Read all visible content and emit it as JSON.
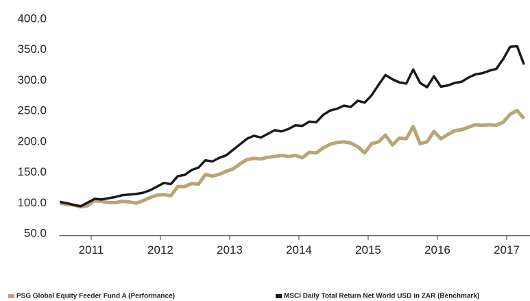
{
  "chart_data": {
    "type": "line",
    "x": [
      2010.55,
      2010.65,
      2010.75,
      2010.85,
      2010.95,
      2011.05,
      2011.15,
      2011.25,
      2011.35,
      2011.45,
      2011.55,
      2011.65,
      2011.75,
      2011.85,
      2011.95,
      2012.05,
      2012.15,
      2012.25,
      2012.35,
      2012.45,
      2012.55,
      2012.65,
      2012.75,
      2012.85,
      2012.95,
      2013.05,
      2013.15,
      2013.25,
      2013.35,
      2013.45,
      2013.55,
      2013.65,
      2013.75,
      2013.85,
      2013.95,
      2014.05,
      2014.15,
      2014.25,
      2014.35,
      2014.45,
      2014.55,
      2014.65,
      2014.75,
      2014.85,
      2014.95,
      2015.05,
      2015.15,
      2015.25,
      2015.35,
      2015.45,
      2015.55,
      2015.65,
      2015.75,
      2015.85,
      2015.95,
      2016.05,
      2016.15,
      2016.25,
      2016.35,
      2016.45,
      2016.55,
      2016.65,
      2016.75,
      2016.85,
      2016.95,
      2017.05,
      2017.15,
      2017.25
    ],
    "series": [
      {
        "name": "PSG Global Equity Feeder Fund A (Performance)",
        "color": "#b9a476",
        "values": [
          100,
          98,
          97,
          94,
          96,
          104,
          103,
          101,
          101,
          103,
          102,
          100,
          104,
          109,
          113,
          114,
          112,
          127,
          127,
          132,
          131,
          147,
          144,
          147,
          152,
          156,
          164,
          171,
          173,
          172,
          175,
          176,
          178,
          176,
          178,
          174,
          183,
          182,
          190,
          196,
          199,
          200,
          198,
          192,
          182,
          197,
          200,
          211,
          195,
          206,
          205,
          225,
          197,
          200,
          217,
          205,
          212,
          218,
          220,
          224,
          228,
          227,
          228,
          227,
          232,
          245,
          251,
          238
        ]
      },
      {
        "name": "MSCI Daily Total Return Net World USD in ZAR (Benchmark)",
        "color": "#1a1a1a",
        "values": [
          102,
          100,
          97,
          95,
          101,
          107,
          106,
          108,
          110,
          113,
          114,
          115,
          117,
          121,
          127,
          133,
          131,
          144,
          146,
          154,
          158,
          170,
          168,
          174,
          178,
          187,
          196,
          205,
          210,
          207,
          213,
          219,
          217,
          221,
          227,
          226,
          233,
          232,
          244,
          251,
          254,
          259,
          257,
          267,
          264,
          276,
          293,
          309,
          302,
          297,
          295,
          318,
          296,
          289,
          307,
          290,
          292,
          296,
          298,
          305,
          310,
          312,
          316,
          319,
          335,
          355,
          356,
          326
        ]
      }
    ],
    "xlim": [
      2010.55,
      2017.3
    ],
    "xticks": [
      2011,
      2012,
      2013,
      2014,
      2015,
      2016,
      2017
    ],
    "ylim": [
      47,
      400
    ],
    "yticks": [
      {
        "value": 50,
        "label": "50.0"
      },
      {
        "value": 100,
        "label": "100.0"
      },
      {
        "value": 150,
        "label": "150.0"
      },
      {
        "value": 200,
        "label": "200.0"
      },
      {
        "value": 250,
        "label": "250.0"
      },
      {
        "value": 300,
        "label": "300.0"
      },
      {
        "value": 350,
        "label": "350.0"
      },
      {
        "value": 400,
        "label": "400.0"
      }
    ]
  }
}
